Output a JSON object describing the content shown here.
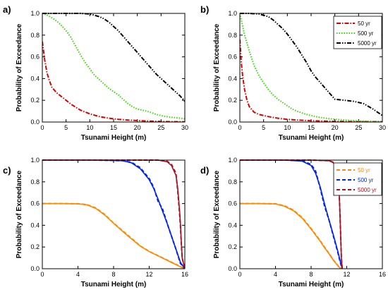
{
  "chart_data": [
    {
      "panel": "a)",
      "type": "line",
      "xlabel": "Tsunami Height (m)",
      "ylabel": "Probability of Exceedance",
      "xlim": [
        0,
        30
      ],
      "ylim": [
        0,
        1
      ],
      "xticks": [
        0,
        5,
        10,
        15,
        20,
        25,
        30
      ],
      "yticks": [
        0.0,
        0.2,
        0.4,
        0.6,
        0.8,
        1.0
      ],
      "grid": false,
      "legend": null,
      "series": [
        {
          "color": "#dd0000",
          "dash": "dashdot",
          "fit": false,
          "x": [
            0,
            0.5,
            1,
            1.5,
            2,
            3,
            4,
            5,
            6,
            8,
            10,
            12,
            14,
            16,
            18,
            20,
            23,
            26,
            30
          ],
          "y": [
            0.74,
            0.57,
            0.45,
            0.38,
            0.32,
            0.27,
            0.235,
            0.2,
            0.165,
            0.11,
            0.075,
            0.05,
            0.035,
            0.025,
            0.018,
            0.013,
            0.008,
            0.004,
            0.002
          ]
        },
        {
          "color": "#33dd00",
          "dash": "dotted",
          "fit": false,
          "x": [
            0,
            1,
            2,
            3,
            4,
            5,
            6,
            7,
            8,
            9,
            10,
            11,
            12,
            13,
            14,
            15,
            16,
            17,
            18,
            19,
            20,
            22,
            24,
            26,
            28,
            30
          ],
          "y": [
            1.0,
            0.985,
            0.96,
            0.93,
            0.89,
            0.84,
            0.78,
            0.7,
            0.62,
            0.55,
            0.49,
            0.43,
            0.39,
            0.35,
            0.31,
            0.28,
            0.25,
            0.21,
            0.17,
            0.14,
            0.12,
            0.1,
            0.07,
            0.05,
            0.04,
            0.03
          ]
        },
        {
          "color": "#000000",
          "dash": "dashdotdot",
          "fit": false,
          "x": [
            0,
            2,
            4,
            6,
            8,
            10,
            12,
            13,
            14,
            15,
            16,
            17,
            18,
            19,
            20,
            21,
            22,
            23,
            24,
            25,
            26,
            27,
            28,
            29,
            30
          ],
          "y": [
            1.0,
            1.0,
            1.0,
            1.0,
            1.0,
            0.995,
            0.97,
            0.95,
            0.92,
            0.88,
            0.84,
            0.79,
            0.74,
            0.69,
            0.64,
            0.59,
            0.54,
            0.49,
            0.44,
            0.4,
            0.36,
            0.32,
            0.28,
            0.24,
            0.19
          ]
        }
      ]
    },
    {
      "panel": "b)",
      "type": "line",
      "xlabel": "Tsunami Height (m)",
      "ylabel": "Probability of Exceedance",
      "xlim": [
        0,
        30
      ],
      "ylim": [
        0,
        1
      ],
      "xticks": [
        0,
        5,
        10,
        15,
        20,
        25,
        30
      ],
      "yticks": [
        0.0,
        0.2,
        0.4,
        0.6,
        0.8,
        1.0
      ],
      "grid": false,
      "legend": {
        "position": "top-right",
        "entries": [
          "50 yr",
          "500 yr",
          "5000 yr"
        ]
      },
      "series": [
        {
          "name": "50 yr",
          "color": "#dd0000",
          "dash": "dashdot",
          "fit": false,
          "x": [
            0,
            0.3,
            0.6,
            1,
            1.5,
            2,
            3,
            4,
            5,
            6,
            8,
            10,
            12,
            15,
            20,
            25,
            30
          ],
          "y": [
            0.76,
            0.55,
            0.42,
            0.3,
            0.2,
            0.14,
            0.09,
            0.07,
            0.06,
            0.05,
            0.035,
            0.025,
            0.018,
            0.012,
            0.006,
            0.003,
            0.002
          ]
        },
        {
          "name": "500 yr",
          "color": "#33dd00",
          "dash": "dotted",
          "fit": false,
          "x": [
            0,
            0.5,
            1,
            2,
            3,
            4,
            5,
            6,
            7,
            8,
            9,
            10,
            11,
            12,
            14,
            16,
            18,
            20,
            25,
            30
          ],
          "y": [
            1.0,
            0.9,
            0.8,
            0.65,
            0.52,
            0.43,
            0.36,
            0.3,
            0.25,
            0.21,
            0.18,
            0.15,
            0.12,
            0.1,
            0.07,
            0.05,
            0.035,
            0.025,
            0.01,
            0.005
          ]
        },
        {
          "name": "5000 yr",
          "color": "#000000",
          "dash": "dashdotdot",
          "fit": false,
          "x": [
            0,
            2,
            4,
            6,
            7,
            8,
            9,
            10,
            11,
            12,
            13,
            14,
            15,
            16,
            17,
            18,
            19,
            20,
            22,
            24,
            26,
            28,
            30
          ],
          "y": [
            1.0,
            1.0,
            0.995,
            0.97,
            0.94,
            0.9,
            0.86,
            0.81,
            0.75,
            0.69,
            0.62,
            0.55,
            0.47,
            0.41,
            0.36,
            0.31,
            0.26,
            0.21,
            0.2,
            0.19,
            0.17,
            0.12,
            0.06
          ]
        }
      ]
    },
    {
      "panel": "c)",
      "type": "line",
      "xlabel": "Tsunami Height (m)",
      "ylabel": "Probability of Exceedance",
      "xlim": [
        0,
        16
      ],
      "ylim": [
        0,
        1
      ],
      "xticks": [
        0,
        4,
        8,
        12,
        16
      ],
      "yticks": [
        0.0,
        0.2,
        0.4,
        0.6,
        0.8,
        1.0
      ],
      "grid": false,
      "legend": null,
      "series": [
        {
          "color": "#ff8800",
          "dash": "dashed",
          "fit": false,
          "x": [
            0,
            2,
            4,
            5,
            6,
            7,
            8,
            9,
            10,
            11,
            12,
            13,
            14,
            14.5,
            15,
            15.5,
            16
          ],
          "y": [
            0.6,
            0.6,
            0.598,
            0.59,
            0.56,
            0.5,
            0.42,
            0.35,
            0.28,
            0.21,
            0.16,
            0.12,
            0.08,
            0.06,
            0.04,
            0.02,
            0.0
          ]
        },
        {
          "color": "#ff8800",
          "dash": "solid",
          "fit": true,
          "x": [
            0,
            2,
            4,
            5,
            6,
            7,
            8,
            9,
            10,
            11,
            12,
            13,
            14,
            14.5,
            15,
            15.5,
            16
          ],
          "y": [
            0.6,
            0.6,
            0.598,
            0.588,
            0.555,
            0.495,
            0.418,
            0.345,
            0.275,
            0.208,
            0.158,
            0.118,
            0.078,
            0.058,
            0.038,
            0.018,
            0.0
          ]
        },
        {
          "color": "#0022ee",
          "dash": "dashed",
          "fit": false,
          "x": [
            0,
            6,
            9,
            10,
            11,
            12,
            12.5,
            13,
            13.5,
            14,
            14.5,
            15,
            15.5,
            16
          ],
          "y": [
            1.0,
            1.0,
            0.995,
            0.98,
            0.93,
            0.83,
            0.75,
            0.62,
            0.55,
            0.42,
            0.3,
            0.18,
            0.05,
            0.0
          ]
        },
        {
          "color": "#0022ee",
          "dash": "solid",
          "fit": true,
          "x": [
            0,
            6,
            9,
            10,
            11,
            12,
            12.5,
            13,
            13.5,
            14,
            14.5,
            15,
            15.5,
            16
          ],
          "y": [
            1.0,
            1.0,
            0.995,
            0.975,
            0.92,
            0.82,
            0.74,
            0.64,
            0.53,
            0.42,
            0.3,
            0.18,
            0.06,
            0.0
          ]
        },
        {
          "color": "#aa1122",
          "dash": "dashed",
          "fit": false,
          "x": [
            0,
            10,
            13,
            14,
            14.5,
            15,
            15.2,
            15.4,
            15.5,
            15.6,
            15.7,
            16
          ],
          "y": [
            1.0,
            1.0,
            1.0,
            0.99,
            0.96,
            0.88,
            0.72,
            0.52,
            0.4,
            0.25,
            0.1,
            0.0
          ]
        },
        {
          "color": "#aa1122",
          "dash": "solid",
          "fit": true,
          "x": [
            0,
            10,
            13,
            14,
            14.5,
            15,
            15.2,
            15.4,
            15.5,
            15.6,
            15.7,
            16
          ],
          "y": [
            1.0,
            1.0,
            1.0,
            0.985,
            0.95,
            0.86,
            0.74,
            0.55,
            0.42,
            0.26,
            0.1,
            0.0
          ]
        }
      ]
    },
    {
      "panel": "d)",
      "type": "line",
      "xlabel": "Tsunami Height (m)",
      "ylabel": "Probability of Exceedance",
      "xlim": [
        0,
        16
      ],
      "ylim": [
        0,
        1
      ],
      "xticks": [
        0,
        4,
        8,
        12,
        16
      ],
      "yticks": [
        0.0,
        0.2,
        0.4,
        0.6,
        0.8,
        1.0
      ],
      "grid": false,
      "legend": {
        "position": "top-right",
        "entries": [
          "50 yr",
          "500 yr",
          "5000 yr"
        ]
      },
      "series": [
        {
          "name": "50 yr",
          "color": "#ff8800",
          "dash": "dashed",
          "fit": false,
          "x": [
            0,
            2,
            4,
            5,
            6,
            7,
            8,
            9,
            9.5,
            10,
            10.5,
            11,
            11.2,
            11.5
          ],
          "y": [
            0.6,
            0.6,
            0.598,
            0.58,
            0.54,
            0.47,
            0.37,
            0.26,
            0.2,
            0.14,
            0.08,
            0.03,
            0.01,
            0.0
          ]
        },
        {
          "name": "50 yr",
          "color": "#ff8800",
          "dash": "solid",
          "fit": true,
          "x": [
            0,
            2,
            4,
            5,
            6,
            7,
            8,
            9,
            9.5,
            10,
            10.5,
            11,
            11.2,
            11.5
          ],
          "y": [
            0.6,
            0.6,
            0.597,
            0.575,
            0.535,
            0.465,
            0.365,
            0.255,
            0.195,
            0.138,
            0.078,
            0.028,
            0.01,
            0.0
          ]
        },
        {
          "name": "500 yr",
          "color": "#0022ee",
          "dash": "dashed",
          "fit": false,
          "x": [
            0,
            5,
            7,
            8,
            8.5,
            9,
            9.5,
            10,
            10.5,
            11,
            11.3,
            11.5
          ],
          "y": [
            1.0,
            1.0,
            0.995,
            0.96,
            0.9,
            0.75,
            0.58,
            0.45,
            0.3,
            0.15,
            0.05,
            0.0
          ]
        },
        {
          "name": "500 yr",
          "color": "#0022ee",
          "dash": "solid",
          "fit": true,
          "x": [
            0,
            5,
            7,
            8,
            8.5,
            9,
            9.5,
            10,
            10.5,
            11,
            11.3,
            11.5
          ],
          "y": [
            1.0,
            1.0,
            0.99,
            0.95,
            0.88,
            0.76,
            0.6,
            0.45,
            0.31,
            0.16,
            0.06,
            0.0
          ]
        },
        {
          "name": "5000 yr",
          "color": "#aa1122",
          "dash": "dashed",
          "fit": false,
          "x": [
            0,
            8,
            10,
            10.5,
            11,
            11.1,
            11.2,
            11.3,
            11.4,
            11.5
          ],
          "y": [
            1.0,
            1.0,
            0.995,
            0.98,
            0.9,
            0.8,
            0.6,
            0.35,
            0.1,
            0.0
          ]
        },
        {
          "name": "5000 yr",
          "color": "#aa1122",
          "dash": "solid",
          "fit": true,
          "x": [
            0,
            8,
            10,
            10.5,
            11,
            11.1,
            11.2,
            11.3,
            11.4,
            11.5
          ],
          "y": [
            1.0,
            1.0,
            0.995,
            0.975,
            0.9,
            0.8,
            0.6,
            0.35,
            0.1,
            0.0
          ]
        }
      ]
    }
  ]
}
